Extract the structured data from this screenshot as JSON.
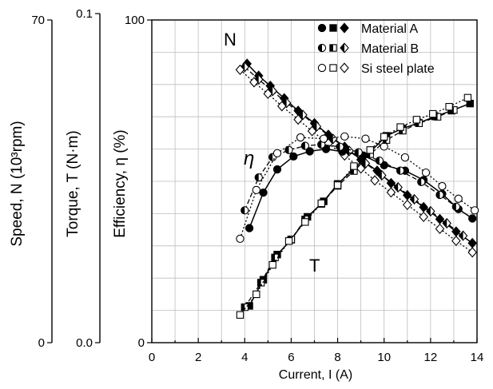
{
  "chart_data": {
    "type": "line",
    "xlabel": "Current, I (A)",
    "x_ticks": [
      "0",
      "2",
      "4",
      "6",
      "8",
      "10",
      "12",
      "14"
    ],
    "xlim": [
      0,
      14
    ],
    "grid": true,
    "legend_position": "top-right",
    "axes": [
      {
        "label": "Speed, N (10³rpm)",
        "top": "70",
        "bottom": "0",
        "ylim": [
          0,
          70
        ]
      },
      {
        "label": "Torque, T (N·m)",
        "top": "0.1",
        "bottom": "0.0",
        "ylim": [
          0,
          0.1
        ]
      },
      {
        "label": "Efficiency, η (%)",
        "top": "100",
        "bottom": "0",
        "ylim": [
          0,
          100
        ]
      }
    ],
    "curve_labels": {
      "speed": "N",
      "efficiency": "η",
      "torque": "T"
    },
    "legend": [
      {
        "name": "Material A",
        "markers": [
          "circle-filled",
          "square-filled",
          "diamond-filled"
        ],
        "color": "#000000"
      },
      {
        "name": "Material B",
        "markers": [
          "circle-half",
          "square-half",
          "diamond-half"
        ],
        "color": "#000000"
      },
      {
        "name": "Si steel plate",
        "markers": [
          "circle-open",
          "square-open",
          "diamond-open"
        ],
        "color": "#000000"
      }
    ],
    "series": [
      {
        "name": "Material A",
        "quantity": "speed",
        "y_axis": "Speed, N (10³rpm)",
        "line": "solid",
        "marker": "diamond-filled",
        "x": [
          4.1,
          4.6,
          5.1,
          5.7,
          6.3,
          7.0,
          7.6,
          8.3,
          9.0,
          9.7,
          10.3,
          11.0,
          11.7,
          12.4,
          13.1,
          13.8
        ],
        "y": [
          60.5,
          57.9,
          55.7,
          53.0,
          50.3,
          47.6,
          45.1,
          42.5,
          39.7,
          37.3,
          34.6,
          32.0,
          29.4,
          26.8,
          24.1,
          21.6
        ]
      },
      {
        "name": "Material B",
        "quantity": "speed",
        "y_axis": "Speed, N (10³rpm)",
        "line": "dashed",
        "marker": "diamond-half",
        "x": [
          4.0,
          4.6,
          5.2,
          5.8,
          6.5,
          7.1,
          7.8,
          8.5,
          9.2,
          9.9,
          10.6,
          11.3,
          12.0,
          12.7,
          13.4
        ],
        "y": [
          59.8,
          57.1,
          54.6,
          52.0,
          49.4,
          46.9,
          44.2,
          41.6,
          38.9,
          36.3,
          33.7,
          31.1,
          28.5,
          25.9,
          23.2
        ]
      },
      {
        "name": "Si steel plate",
        "quantity": "speed",
        "y_axis": "Speed, N (10³rpm)",
        "line": "dotted",
        "marker": "diamond-open",
        "x": [
          3.8,
          4.4,
          5.0,
          5.6,
          6.3,
          6.9,
          7.6,
          8.3,
          9.0,
          9.6,
          10.3,
          11.0,
          11.7,
          12.4,
          13.1,
          13.8
        ],
        "y": [
          59.2,
          56.5,
          54.0,
          51.3,
          48.4,
          45.9,
          43.2,
          40.6,
          37.8,
          35.2,
          32.6,
          29.9,
          27.3,
          24.7,
          22.1,
          19.6
        ]
      },
      {
        "name": "Material A",
        "quantity": "efficiency",
        "y_axis": "Efficiency, η (%)",
        "line": "solid",
        "marker": "circle-filled",
        "x": [
          4.2,
          4.8,
          5.4,
          6.1,
          6.8,
          7.5,
          8.2,
          9.1,
          10.0,
          10.9,
          11.7,
          12.5,
          13.2,
          13.8
        ],
        "y": [
          35.5,
          46.5,
          53.7,
          57.7,
          59.3,
          60.0,
          59.2,
          58.0,
          55.0,
          53.3,
          50.4,
          46.1,
          41.4,
          38.5
        ]
      },
      {
        "name": "Material B",
        "quantity": "efficiency",
        "y_axis": "Efficiency, η (%)",
        "line": "dashed",
        "marker": "circle-half",
        "x": [
          4.0,
          4.6,
          5.2,
          5.9,
          6.6,
          7.3,
          8.1,
          8.9,
          9.8,
          10.7,
          11.6,
          12.4,
          13.1
        ],
        "y": [
          41.0,
          51.2,
          57.5,
          59.7,
          61.0,
          61.4,
          60.7,
          59.0,
          56.4,
          53.3,
          49.8,
          45.8,
          42.1
        ]
      },
      {
        "name": "Si steel plate",
        "quantity": "efficiency",
        "y_axis": "Efficiency, η (%)",
        "line": "dotted",
        "marker": "circle-open",
        "x": [
          3.8,
          4.5,
          5.4,
          6.4,
          7.4,
          8.3,
          9.2,
          10.0,
          10.9,
          11.8,
          12.5,
          13.2,
          13.9
        ],
        "y": [
          32.2,
          47.3,
          58.7,
          63.6,
          63.2,
          63.9,
          63.2,
          60.8,
          57.4,
          52.7,
          48.5,
          44.6,
          41.0
        ]
      },
      {
        "name": "Material A",
        "quantity": "torque",
        "y_axis": "Torque, T (N·m)",
        "line": "solid",
        "marker": "square-filled",
        "x": [
          4.2,
          4.8,
          5.4,
          6.0,
          6.7,
          7.4,
          8.0,
          8.7,
          9.4,
          10.1,
          10.8,
          11.5,
          12.2,
          12.9,
          13.7
        ],
        "y": [
          0.0114,
          0.0195,
          0.0273,
          0.0319,
          0.039,
          0.0438,
          0.0492,
          0.0538,
          0.0591,
          0.0641,
          0.0664,
          0.0681,
          0.0701,
          0.0719,
          0.0741
        ]
      },
      {
        "name": "Material B",
        "quantity": "torque",
        "y_axis": "Torque, T (N·m)",
        "line": "dashed",
        "marker": "square-half",
        "x": [
          4.0,
          4.7,
          5.3,
          6.0,
          6.6,
          7.3,
          8.0,
          8.7,
          9.4,
          10.1,
          10.8,
          11.5,
          12.3,
          13.0
        ],
        "y": [
          0.011,
          0.0186,
          0.0264,
          0.032,
          0.0382,
          0.043,
          0.0486,
          0.0532,
          0.0584,
          0.0628,
          0.0657,
          0.068,
          0.07,
          0.0721
        ]
      },
      {
        "name": "Si steel plate",
        "quantity": "torque",
        "y_axis": "Torque, T (N·m)",
        "line": "dotted",
        "marker": "square-open",
        "x": [
          3.8,
          4.5,
          5.2,
          5.9,
          6.6,
          7.3,
          8.0,
          8.7,
          9.4,
          10.0,
          10.7,
          11.4,
          12.1,
          12.8,
          13.6
        ],
        "y": [
          0.0086,
          0.015,
          0.0241,
          0.0315,
          0.0374,
          0.0432,
          0.0488,
          0.0547,
          0.0597,
          0.0638,
          0.0668,
          0.0691,
          0.0709,
          0.0731,
          0.0759
        ]
      }
    ]
  }
}
